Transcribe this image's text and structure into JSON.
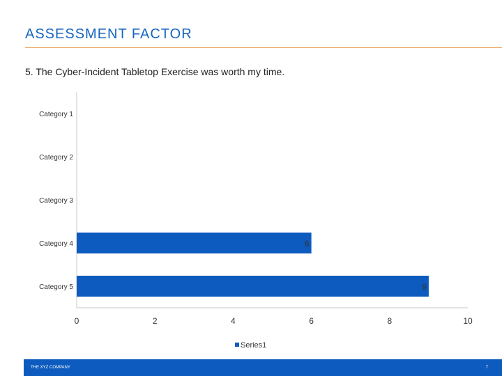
{
  "page": {
    "title": "ASSESSMENT FACTOR",
    "question": "5. The Cyber-Incident Tabletop Exercise was worth my time."
  },
  "footer": {
    "company": "THE XYZ COMPANY",
    "page_number": "7"
  },
  "chart_data": {
    "type": "bar",
    "orientation": "horizontal",
    "categories": [
      "Category 1",
      "Category 2",
      "Category 3",
      "Category 4",
      "Category 5"
    ],
    "series": [
      {
        "name": "Series1",
        "values": [
          0,
          0,
          0,
          6,
          9
        ],
        "color": "#0d5bbf"
      }
    ],
    "data_labels": [
      "",
      "",
      "",
      "6",
      "9"
    ],
    "xlim": [
      0,
      10
    ],
    "xticks": [
      0,
      2,
      4,
      6,
      8,
      10
    ],
    "grid": false,
    "legend": "bottom"
  },
  "colors": {
    "title": "#1565c0",
    "rule": "#e8a15a",
    "bar": "#0d5bbf",
    "footer": "#0d5bbf"
  }
}
